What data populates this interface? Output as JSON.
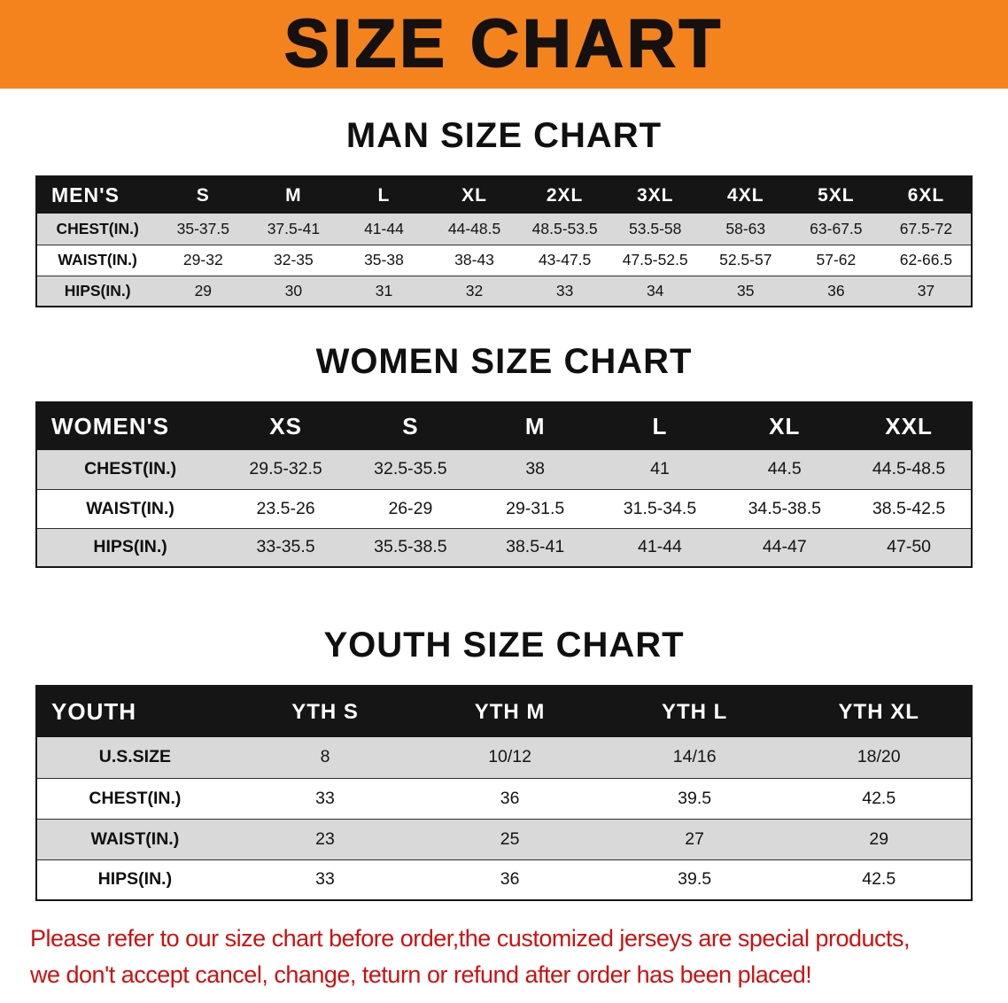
{
  "banner": {
    "title": "SIZE CHART",
    "bg_color": "#F5831D",
    "text_color": "#141110"
  },
  "sections": [
    {
      "id": "men",
      "heading": "MAN SIZE CHART",
      "header": [
        "MEN'S",
        "S",
        "M",
        "L",
        "XL",
        "2XL",
        "3XL",
        "4XL",
        "5XL",
        "6XL"
      ],
      "rows": [
        {
          "label": "CHEST(IN.)",
          "values": [
            "35-37.5",
            "37.5-41",
            "41-44",
            "44-48.5",
            "48.5-53.5",
            "53.5-58",
            "58-63",
            "63-67.5",
            "67.5-72"
          ]
        },
        {
          "label": "WAIST(IN.)",
          "values": [
            "29-32",
            "32-35",
            "35-38",
            "38-43",
            "43-47.5",
            "47.5-52.5",
            "52.5-57",
            "57-62",
            "62-66.5"
          ]
        },
        {
          "label": "HIPS(IN.)",
          "values": [
            "29",
            "30",
            "31",
            "32",
            "33",
            "34",
            "35",
            "36",
            "37"
          ]
        }
      ]
    },
    {
      "id": "women",
      "heading": "WOMEN SIZE CHART",
      "header": [
        "WOMEN'S",
        "XS",
        "S",
        "M",
        "L",
        "XL",
        "XXL"
      ],
      "rows": [
        {
          "label": "CHEST(IN.)",
          "values": [
            "29.5-32.5",
            "32.5-35.5",
            "38",
            "41",
            "44.5",
            "44.5-48.5"
          ]
        },
        {
          "label": "WAIST(IN.)",
          "values": [
            "23.5-26",
            "26-29",
            "29-31.5",
            "31.5-34.5",
            "34.5-38.5",
            "38.5-42.5"
          ]
        },
        {
          "label": "HIPS(IN.)",
          "values": [
            "33-35.5",
            "35.5-38.5",
            "38.5-41",
            "41-44",
            "44-47",
            "47-50"
          ]
        }
      ]
    },
    {
      "id": "youth",
      "heading": "YOUTH SIZE CHART",
      "header": [
        "YOUTH",
        "YTH S",
        "YTH M",
        "YTH L",
        "YTH XL"
      ],
      "rows": [
        {
          "label": "U.S.SIZE",
          "values": [
            "8",
            "10/12",
            "14/16",
            "18/20"
          ]
        },
        {
          "label": "CHEST(IN.)",
          "values": [
            "33",
            "36",
            "39.5",
            "42.5"
          ]
        },
        {
          "label": "WAIST(IN.)",
          "values": [
            "23",
            "25",
            "27",
            "29"
          ]
        },
        {
          "label": "HIPS(IN.)",
          "values": [
            "33",
            "36",
            "39.5",
            "42.5"
          ]
        }
      ]
    }
  ],
  "disclaimer": {
    "line1": "Please refer to our size chart before order,the customized jerseys are special products,",
    "line2": "we don't accept cancel, change, teturn or refund after order has been placed!",
    "text_color": "#CC1111"
  },
  "colors": {
    "header_bg": "#151515",
    "header_text": "#FFFFFF",
    "row_shade": "#D9D9D9"
  }
}
